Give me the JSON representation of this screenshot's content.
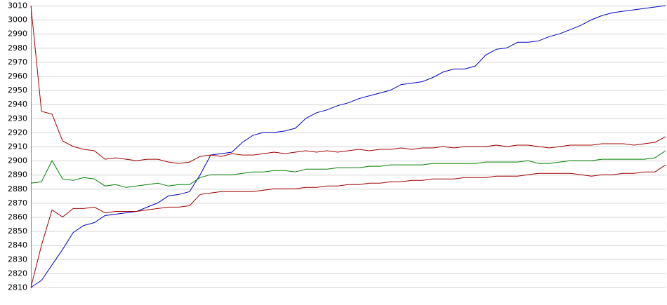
{
  "chart_data": {
    "type": "line",
    "ylim": [
      2810,
      3010
    ],
    "yticks": [
      2810,
      2820,
      2830,
      2840,
      2850,
      2860,
      2870,
      2880,
      2890,
      2900,
      2910,
      2920,
      2930,
      2940,
      2950,
      2960,
      2970,
      2980,
      2990,
      3000,
      3010
    ],
    "grid": true,
    "series": [
      {
        "color": "#0000c0",
        "values": [
          2810,
          2815,
          2826,
          2837,
          2849,
          2854,
          2856,
          2861,
          2862,
          2863,
          2864,
          2867,
          2870,
          2875,
          2876,
          2878,
          2890,
          2904,
          2905,
          2906,
          2913,
          2918,
          2920,
          2920,
          2921,
          2923,
          2930,
          2934,
          2936,
          2939,
          2941,
          2944,
          2946,
          2948,
          2950,
          2954,
          2955,
          2956,
          2959,
          2963,
          2965,
          2965,
          2967,
          2975,
          2979,
          2980,
          2984,
          2984,
          2985,
          2988,
          2990,
          2993,
          2996,
          3000,
          3003,
          3005,
          3006,
          3007,
          3008,
          3009,
          3010
        ]
      },
      {
        "color": "#a00000",
        "values": [
          3010,
          2935,
          2933,
          2914,
          2910,
          2908,
          2907,
          2901,
          2902,
          2901,
          2900,
          2901,
          2901,
          2899,
          2898,
          2899,
          2903,
          2904,
          2903,
          2905,
          2904,
          2904,
          2905,
          2906,
          2905,
          2906,
          2907,
          2906,
          2907,
          2906,
          2907,
          2908,
          2907,
          2908,
          2908,
          2909,
          2908,
          2909,
          2909,
          2910,
          2909,
          2910,
          2910,
          2910,
          2911,
          2910,
          2911,
          2911,
          2910,
          2909,
          2910,
          2911,
          2911,
          2911,
          2912,
          2912,
          2912,
          2911,
          2912,
          2913,
          2917
        ]
      },
      {
        "color": "#008000",
        "values": [
          2884,
          2885,
          2900,
          2887,
          2886,
          2888,
          2887,
          2882,
          2883,
          2881,
          2882,
          2883,
          2884,
          2882,
          2883,
          2883,
          2888,
          2890,
          2890,
          2890,
          2891,
          2892,
          2892,
          2893,
          2893,
          2892,
          2894,
          2894,
          2894,
          2895,
          2895,
          2895,
          2896,
          2896,
          2897,
          2897,
          2897,
          2897,
          2898,
          2898,
          2898,
          2898,
          2898,
          2899,
          2899,
          2899,
          2899,
          2900,
          2898,
          2898,
          2899,
          2900,
          2900,
          2900,
          2901,
          2901,
          2901,
          2901,
          2901,
          2902,
          2907
        ]
      },
      {
        "color": "#a00000",
        "values": [
          2810,
          2840,
          2865,
          2860,
          2866,
          2866,
          2867,
          2863,
          2864,
          2864,
          2864,
          2865,
          2866,
          2867,
          2867,
          2868,
          2876,
          2877,
          2878,
          2878,
          2878,
          2878,
          2879,
          2880,
          2880,
          2880,
          2881,
          2881,
          2882,
          2882,
          2883,
          2883,
          2884,
          2884,
          2885,
          2885,
          2886,
          2886,
          2887,
          2887,
          2887,
          2888,
          2888,
          2888,
          2889,
          2889,
          2889,
          2890,
          2891,
          2891,
          2891,
          2891,
          2890,
          2889,
          2890,
          2890,
          2891,
          2891,
          2892,
          2892,
          2897
        ]
      }
    ]
  }
}
